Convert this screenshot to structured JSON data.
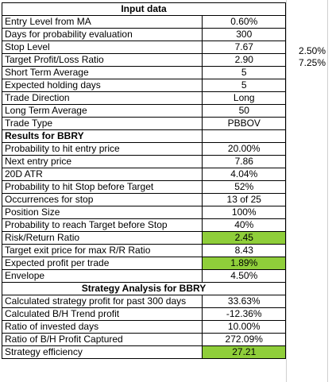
{
  "header": "Input data",
  "inputs": [
    {
      "label": "Entry Level from MA",
      "value": "0.60%"
    },
    {
      "label": "Days for probability evaluation",
      "value": "300"
    },
    {
      "label": "Stop Level",
      "value": "7.67"
    },
    {
      "label": "Target Profit/Loss Ratio",
      "value": "2.90"
    },
    {
      "label": "Short Term Average",
      "value": "5"
    },
    {
      "label": "Expected holding days",
      "value": "5"
    },
    {
      "label": "Trade Direction",
      "value": "Long"
    },
    {
      "label": "Long Term Average",
      "value": "50"
    },
    {
      "label": "Trade Type",
      "value": "PBBOV"
    }
  ],
  "side_values": {
    "stop_pct": "2.50%",
    "target_pct": "7.25%"
  },
  "results_header": "Results for BBRY",
  "results": [
    {
      "label": "Probability to hit entry price",
      "value": "20.00%",
      "highlight": false
    },
    {
      "label": "Next entry price",
      "value": "7.86",
      "highlight": false
    },
    {
      "label": "20D ATR",
      "value": "4.04%",
      "highlight": false
    },
    {
      "label": "Probability to hit Stop before Target",
      "value": "52%",
      "highlight": false
    },
    {
      "label": "Occurrences for stop",
      "value": "13 of 25",
      "highlight": false
    },
    {
      "label": "Position Size",
      "value": "100%",
      "highlight": false
    },
    {
      "label": "Probability to reach Target before Stop",
      "value": "40%",
      "highlight": false
    },
    {
      "label": "Risk/Return Ratio",
      "value": "2.45",
      "highlight": true
    },
    {
      "label": "Target exit price for max R/R Ratio",
      "value": "8.43",
      "highlight": false
    },
    {
      "label": "Expected profit per trade",
      "value": "1.89%",
      "highlight": true
    },
    {
      "label": "Envelope",
      "value": "4.50%",
      "highlight": false
    }
  ],
  "strategy_header": "Strategy Analysis for BBRY",
  "strategy": [
    {
      "label": "Calculated strategy profit for past 300 days",
      "value": "33.63%",
      "highlight": false
    },
    {
      "label": "Calculated B/H Trend profit",
      "value": "-12.36%",
      "highlight": false
    },
    {
      "label": "Ratio of invested days",
      "value": "10.00%",
      "highlight": false
    },
    {
      "label": "Ratio of B/H Profit Captured",
      "value": "272.09%",
      "highlight": false
    },
    {
      "label": "Strategy efficiency",
      "value": "27.21",
      "highlight": true
    }
  ],
  "highlight_color": "#8fce3a"
}
